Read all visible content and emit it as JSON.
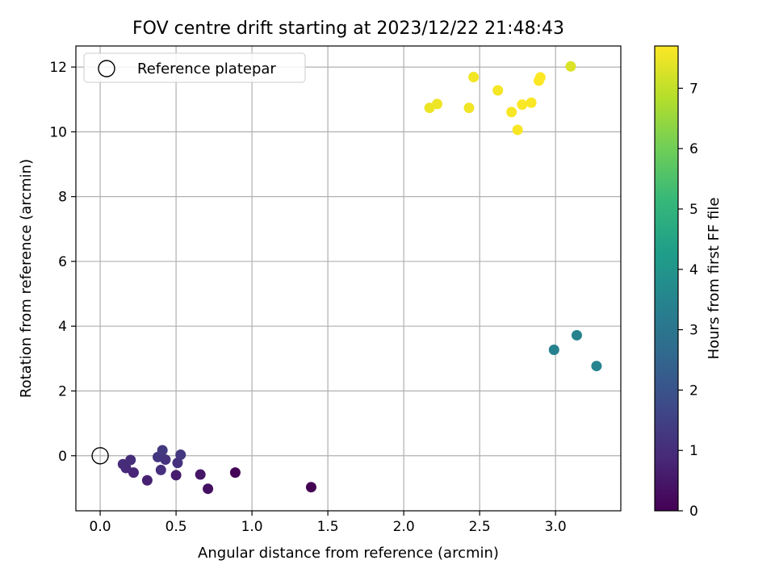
{
  "chart_data": {
    "type": "scatter",
    "title": "FOV centre drift starting at 2023/12/22 21:48:43",
    "xlabel": "Angular distance from reference (arcmin)",
    "ylabel": "Rotation from reference (arcmin)",
    "xlim": [
      -0.16,
      3.43
    ],
    "ylim": [
      -1.7,
      12.65
    ],
    "x_ticks": [
      0.0,
      0.5,
      1.0,
      1.5,
      2.0,
      2.5,
      3.0
    ],
    "x_tick_labels": [
      "0.0",
      "0.5",
      "1.0",
      "1.5",
      "2.0",
      "2.5",
      "3.0"
    ],
    "y_ticks": [
      0,
      2,
      4,
      6,
      8,
      10,
      12
    ],
    "y_tick_labels": [
      "0",
      "2",
      "4",
      "6",
      "8",
      "10",
      "12"
    ],
    "grid": true,
    "legend": {
      "placement": "top-left",
      "entries": [
        {
          "label": "Reference platepar",
          "marker": "open-circle"
        }
      ]
    },
    "reference_point": {
      "x": 0.0,
      "y": 0.0
    },
    "colorbar": {
      "label": "Hours from first FF file",
      "range": [
        0,
        7.7
      ],
      "ticks": [
        0,
        1,
        2,
        3,
        4,
        5,
        6,
        7
      ],
      "tick_labels": [
        "0",
        "1",
        "2",
        "3",
        "4",
        "5",
        "6",
        "7"
      ],
      "colormap": "viridis",
      "colormap_stops": [
        "#440154",
        "#482878",
        "#3e4989",
        "#31688e",
        "#26828e",
        "#1f9e89",
        "#35b779",
        "#6ece58",
        "#b5de2b",
        "#fde725"
      ]
    },
    "points": [
      {
        "x": 1.39,
        "y": -0.97,
        "c": 0.0
      },
      {
        "x": 0.89,
        "y": -0.52,
        "c": 0.05
      },
      {
        "x": 0.71,
        "y": -1.02,
        "c": 0.3
      },
      {
        "x": 0.66,
        "y": -0.58,
        "c": 0.45
      },
      {
        "x": 0.5,
        "y": -0.6,
        "c": 0.6
      },
      {
        "x": 0.31,
        "y": -0.76,
        "c": 0.7
      },
      {
        "x": 0.22,
        "y": -0.52,
        "c": 0.8
      },
      {
        "x": 0.17,
        "y": -0.38,
        "c": 0.9
      },
      {
        "x": 0.15,
        "y": -0.26,
        "c": 0.95
      },
      {
        "x": 0.2,
        "y": -0.13,
        "c": 1.0
      },
      {
        "x": 0.4,
        "y": -0.44,
        "c": 1.05
      },
      {
        "x": 0.51,
        "y": -0.22,
        "c": 1.1
      },
      {
        "x": 0.43,
        "y": -0.12,
        "c": 1.15
      },
      {
        "x": 0.38,
        "y": -0.04,
        "c": 1.2
      },
      {
        "x": 0.53,
        "y": 0.03,
        "c": 1.25
      },
      {
        "x": 0.41,
        "y": 0.17,
        "c": 1.3
      },
      {
        "x": 2.99,
        "y": 3.27,
        "c": 3.4
      },
      {
        "x": 3.14,
        "y": 3.72,
        "c": 3.45
      },
      {
        "x": 3.27,
        "y": 2.77,
        "c": 3.5
      },
      {
        "x": 2.17,
        "y": 10.74,
        "c": 7.5
      },
      {
        "x": 2.22,
        "y": 10.86,
        "c": 7.52
      },
      {
        "x": 2.43,
        "y": 10.74,
        "c": 7.55
      },
      {
        "x": 2.46,
        "y": 11.69,
        "c": 7.57
      },
      {
        "x": 2.62,
        "y": 11.28,
        "c": 7.6
      },
      {
        "x": 2.71,
        "y": 10.61,
        "c": 7.62
      },
      {
        "x": 2.75,
        "y": 10.06,
        "c": 7.64
      },
      {
        "x": 2.78,
        "y": 10.84,
        "c": 7.66
      },
      {
        "x": 2.84,
        "y": 10.9,
        "c": 7.67
      },
      {
        "x": 2.89,
        "y": 11.58,
        "c": 7.68
      },
      {
        "x": 2.9,
        "y": 11.68,
        "c": 7.69
      },
      {
        "x": 3.1,
        "y": 12.02,
        "c": 7.3
      }
    ]
  }
}
